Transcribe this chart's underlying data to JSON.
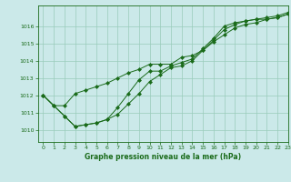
{
  "title": "Graphe pression niveau de la mer (hPa)",
  "bg_color": "#cbe9e9",
  "grid_color": "#99ccbb",
  "line_color": "#1a6b1a",
  "xlim": [
    -0.5,
    23
  ],
  "ylim": [
    1009.3,
    1017.2
  ],
  "yticks": [
    1010,
    1011,
    1012,
    1013,
    1014,
    1015,
    1016
  ],
  "xticks": [
    0,
    1,
    2,
    3,
    4,
    5,
    6,
    7,
    8,
    9,
    10,
    11,
    12,
    13,
    14,
    15,
    16,
    17,
    18,
    19,
    20,
    21,
    22,
    23
  ],
  "series1": [
    1012.0,
    1011.4,
    1011.4,
    1012.1,
    1012.3,
    1012.5,
    1012.7,
    1013.0,
    1013.3,
    1013.5,
    1013.8,
    1013.8,
    1013.8,
    1014.2,
    1014.3,
    1014.6,
    1015.2,
    1015.8,
    1016.1,
    1016.3,
    1016.4,
    1016.4,
    1016.5,
    1016.7
  ],
  "series2": [
    1012.0,
    1011.4,
    1010.8,
    1010.2,
    1010.3,
    1010.4,
    1010.6,
    1010.9,
    1011.5,
    1012.1,
    1012.8,
    1013.2,
    1013.6,
    1013.7,
    1014.0,
    1014.6,
    1015.1,
    1015.5,
    1015.9,
    1016.1,
    1016.2,
    1016.4,
    1016.5,
    1016.7
  ],
  "series3": [
    1012.0,
    1011.4,
    1010.8,
    1010.2,
    1010.3,
    1010.4,
    1010.6,
    1011.3,
    1012.1,
    1012.9,
    1013.4,
    1013.4,
    1013.7,
    1013.9,
    1014.1,
    1014.7,
    1015.3,
    1016.0,
    1016.2,
    1016.3,
    1016.4,
    1016.5,
    1016.6,
    1016.8
  ]
}
